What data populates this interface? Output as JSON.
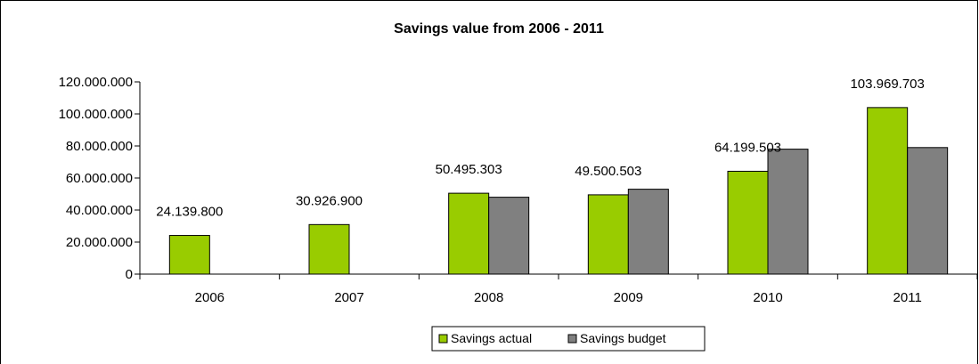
{
  "chart_data": {
    "type": "bar",
    "title": "Savings value from 2006 - 2011",
    "categories": [
      "2006",
      "2007",
      "2008",
      "2009",
      "2010",
      "2011"
    ],
    "series": [
      {
        "name": "Savings actual",
        "color": "#99cc00",
        "values": [
          24139800,
          30926900,
          50495303,
          49500503,
          64199503,
          103969703
        ],
        "labels": [
          "24.139.800",
          "30.926.900",
          "50.495.303",
          "49.500.503",
          "64.199.503",
          "103.969.703"
        ]
      },
      {
        "name": "Savings budget",
        "color": "#808080",
        "values": [
          null,
          null,
          48000000,
          53000000,
          78000000,
          79000000
        ]
      }
    ],
    "ylim": [
      0,
      120000000
    ],
    "yticks": [
      0,
      20000000,
      40000000,
      60000000,
      80000000,
      100000000,
      120000000
    ],
    "ytick_labels": [
      "0",
      "20.000.000",
      "40.000.000",
      "60.000.000",
      "80.000.000",
      "100.000.000",
      "120.000.000"
    ],
    "xlabel": "",
    "ylabel": "",
    "grid": false,
    "legend_position": "bottom"
  }
}
